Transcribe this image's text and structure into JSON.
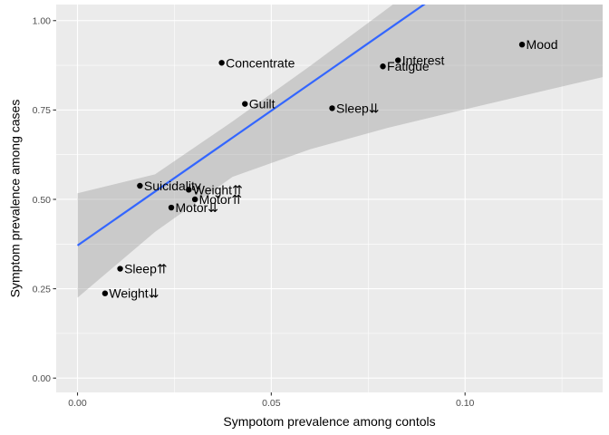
{
  "chart_data": {
    "type": "scatter",
    "title": "",
    "xlabel": "Sympotom prevalence among contols",
    "ylabel": "Symptom prevalence among cases",
    "xlim": [
      -0.0055,
      0.1355
    ],
    "ylim": [
      -0.04,
      1.045
    ],
    "x_ticks": [
      0.0,
      0.05,
      0.1
    ],
    "x_tick_labels": [
      "0.00",
      "0.05",
      "0.10"
    ],
    "y_ticks": [
      0.0,
      0.25,
      0.5,
      0.75,
      1.0
    ],
    "y_tick_labels": [
      "0.00",
      "0.25",
      "0.50",
      "0.75",
      "1.00"
    ],
    "grid": true,
    "points": [
      {
        "label": "Mood",
        "x": 0.1147,
        "y": 0.933
      },
      {
        "label": "Concentrate",
        "x": 0.0372,
        "y": 0.882
      },
      {
        "label": "Interest",
        "x": 0.0827,
        "y": 0.889
      },
      {
        "label": "Fatigue",
        "x": 0.0788,
        "y": 0.872
      },
      {
        "label": "Guilt",
        "x": 0.0432,
        "y": 0.767
      },
      {
        "label": "Sleep⇊",
        "x": 0.0657,
        "y": 0.755
      },
      {
        "label": "Suicidality",
        "x": 0.0161,
        "y": 0.538
      },
      {
        "label": "Weight⇈",
        "x": 0.0287,
        "y": 0.527
      },
      {
        "label": "Motor⇈",
        "x": 0.0303,
        "y": 0.5
      },
      {
        "label": "Motor⇊",
        "x": 0.0242,
        "y": 0.477
      },
      {
        "label": "Sleep⇈",
        "x": 0.011,
        "y": 0.306
      },
      {
        "label": "Weight⇊",
        "x": 0.0071,
        "y": 0.237
      }
    ],
    "regression_line": {
      "x": [
        0.0,
        0.1355
      ],
      "intercept": 0.371,
      "slope": 7.54,
      "color": "#3366FF"
    },
    "confidence_band": {
      "x": [
        0.0,
        0.02,
        0.04,
        0.06,
        0.08,
        0.1,
        0.12,
        0.1355
      ],
      "lower": [
        0.225,
        0.409,
        0.563,
        0.64,
        0.7,
        0.752,
        0.803,
        0.842
      ],
      "upper": [
        0.517,
        0.57,
        0.718,
        0.873,
        1.034,
        1.194,
        1.354,
        1.48
      ],
      "color": "#999999"
    },
    "point_color": "#000000",
    "panel_background": "#EBEBEB"
  }
}
